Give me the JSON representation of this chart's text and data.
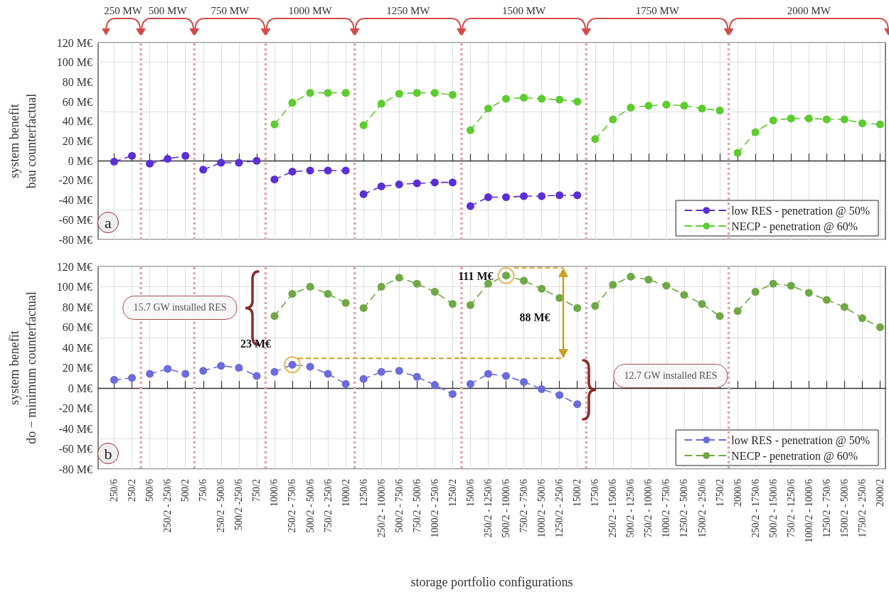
{
  "chart_data": [
    {
      "type": "line",
      "ylabel": "system benefit\nbau counterfactual",
      "categories": [
        "250/6",
        "250/2",
        "500/6",
        "250/2 - 250/6",
        "500/2",
        "750/6",
        "250/2 - 500/6",
        "500/2 -250/6",
        "750/2",
        "1000/6",
        "250/2 - 750/6",
        "500/2 - 500/6",
        "750/2 - 250/6",
        "1000/2",
        "1250/6",
        "250/2 - 1000/6",
        "500/2 - 750/6",
        "750/2 - 500/6",
        "1000/2 - 250/6",
        "1250/2",
        "1500/6",
        "250/2 - 1250/6",
        "500/2 - 1000/6",
        "750/2 - 750/6",
        "1000/2 - 500/6",
        "1250/2 - 250/6",
        "1500/2",
        "1750/6",
        "250/2 - 1500/6",
        "500/2 - 1250/6",
        "750/2 - 1000/6",
        "1000/2 - 750/6",
        "1250/2 - 500/6",
        "1500/2 - 250/6",
        "1750/2",
        "2000/6",
        "250/2 - 1750/6",
        "500/2 - 1500/6",
        "750/2 - 1250/6",
        "1000/2 - 1000/6",
        "1250/2 - 750/6",
        "1500/2 - 500/6",
        "1750/2 - 250/6",
        "2000/2"
      ],
      "series": [
        {
          "name": "low RES - penetration @ 50%",
          "color": "#5b2fd6",
          "values": [
            -1,
            5,
            -3,
            2,
            5,
            -9,
            -2,
            -2,
            0,
            -19,
            -11,
            -10,
            -10,
            -10,
            -34,
            -26,
            -24,
            -23,
            -22,
            -22,
            -46,
            -37,
            -37,
            -36,
            -36,
            -35,
            -35,
            null,
            null,
            null,
            null,
            null,
            null,
            null,
            null,
            null,
            null,
            null,
            null,
            null,
            null,
            null,
            null,
            null
          ]
        },
        {
          "name": "NECP - penetration @ 60%",
          "color": "#5ccc2e",
          "values": [
            null,
            null,
            null,
            null,
            null,
            null,
            null,
            null,
            null,
            37,
            59,
            69,
            69,
            69,
            36,
            58,
            68,
            69,
            69,
            67,
            31,
            53,
            63,
            64,
            63,
            62,
            60,
            22,
            42,
            54,
            56,
            57,
            56,
            53,
            51,
            8,
            29,
            41,
            43,
            43,
            42,
            42,
            38,
            37
          ]
        }
      ],
      "ylim": [
        -80,
        120
      ],
      "yticks": [
        {
          "value": -80,
          "label": "-80 M€"
        },
        {
          "value": -60,
          "label": "-60 M€"
        },
        {
          "value": -40,
          "label": "-40 M€"
        },
        {
          "value": -20,
          "label": "-20 M€"
        },
        {
          "value": 0,
          "label": "0 M€"
        },
        {
          "value": 20,
          "label": "20 M€"
        },
        {
          "value": 40,
          "label": "40 M€"
        },
        {
          "value": 60,
          "label": "60 M€"
        },
        {
          "value": 80,
          "label": "80 M€"
        },
        {
          "value": 100,
          "label": "100 M€"
        },
        {
          "value": 120,
          "label": "120 M€"
        }
      ],
      "annotations": [
        "250 MW",
        "500 MW",
        "750 MW",
        "1000 MW",
        "1250 MW",
        "1500 MW",
        "1750 MW",
        "2000 MW",
        "a"
      ],
      "grid": true,
      "legend": "bottom right",
      "marker": "circle",
      "line_style": "dashed",
      "tick_labels": "y"
    },
    {
      "type": "line",
      "ylabel": "system benefit\ndo − minimum counterfactual",
      "xlabel": "storage portfolio configurations",
      "categories": [
        "250/6",
        "250/2",
        "500/6",
        "250/2 - 250/6",
        "500/2",
        "750/6",
        "250/2 - 500/6",
        "500/2 -250/6",
        "750/2",
        "1000/6",
        "250/2 - 750/6",
        "500/2 - 500/6",
        "750/2 - 250/6",
        "1000/2",
        "1250/6",
        "250/2 - 1000/6",
        "500/2 - 750/6",
        "750/2 - 500/6",
        "1000/2 - 250/6",
        "1250/2",
        "1500/6",
        "250/2 - 1250/6",
        "500/2 - 1000/6",
        "750/2 - 750/6",
        "1000/2 - 500/6",
        "1250/2 - 250/6",
        "1500/2",
        "1750/6",
        "250/2 - 1500/6",
        "500/2 - 1250/6",
        "750/2 - 1000/6",
        "1000/2 - 750/6",
        "1250/2 - 500/6",
        "1500/2 - 250/6",
        "1750/2",
        "2000/6",
        "250/2 - 1750/6",
        "500/2 - 1500/6",
        "750/2 - 1250/6",
        "1000/2 - 1000/6",
        "1250/2 - 750/6",
        "1500/2 - 500/6",
        "1750/2 - 250/6",
        "2000/2"
      ],
      "series": [
        {
          "name": "low RES - penetration @ 50%",
          "color": "#6b6bdc",
          "values": [
            8,
            10,
            14,
            19,
            14,
            17,
            22,
            20,
            12,
            16,
            23,
            21,
            14,
            4,
            9,
            16,
            17,
            11,
            3,
            -6,
            4,
            14,
            12,
            6,
            -1,
            -7,
            -16,
            null,
            null,
            null,
            null,
            null,
            null,
            null,
            null,
            null,
            null,
            null,
            null,
            null,
            null,
            null,
            null,
            null
          ]
        },
        {
          "name": "NECP - penetration @ 60%",
          "color": "#6fa845",
          "values": [
            null,
            null,
            null,
            null,
            null,
            null,
            null,
            null,
            null,
            71,
            93,
            100,
            93,
            84,
            79,
            100,
            109,
            103,
            95,
            83,
            82,
            103,
            111,
            106,
            98,
            89,
            79,
            81,
            102,
            110,
            107,
            101,
            92,
            83,
            71,
            76,
            95,
            103,
            101,
            94,
            87,
            80,
            69,
            60
          ]
        }
      ],
      "ylim": [
        -80,
        120
      ],
      "yticks": [
        {
          "value": -80,
          "label": "-80 M€"
        },
        {
          "value": -60,
          "label": "-60 M€"
        },
        {
          "value": -40,
          "label": "-40 M€"
        },
        {
          "value": -20,
          "label": "-20 M€"
        },
        {
          "value": 0,
          "label": "0 M€"
        },
        {
          "value": 20,
          "label": "20 M€"
        },
        {
          "value": 40,
          "label": "40 M€"
        },
        {
          "value": 60,
          "label": "60 M€"
        },
        {
          "value": 80,
          "label": "80 M€"
        },
        {
          "value": 100,
          "label": "100 M€"
        },
        {
          "value": 120,
          "label": "120 M€"
        }
      ],
      "annotations": [
        "b",
        "88 M€",
        "15.7 GW installed RES",
        "12.7 GW installed RES",
        {
          "text": "111 M€",
          "x": "500/2 - 1000/6",
          "y": 111
        },
        {
          "text": "23 M€",
          "x": "250/2 - 750/6",
          "y": 23
        }
      ],
      "grid": true,
      "legend": "bottom right",
      "marker": "circle",
      "line_style": "dashed"
    }
  ]
}
